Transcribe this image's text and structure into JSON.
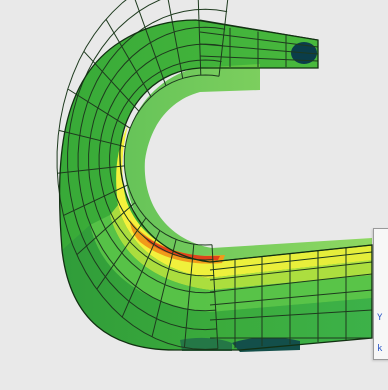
{
  "viewer": {
    "background_color": "#e9e9e9",
    "mesh_line_color": "#1e3a1e",
    "model": "curved-hook-finite-element-mesh",
    "colors": {
      "dark_blue": "#0b3d4a",
      "green_dark": "#2e9e3b",
      "green": "#48b83c",
      "green_light": "#6fd14a",
      "lime": "#b9e23d",
      "yellow": "#e6e83a",
      "orange": "#f09a1a",
      "red": "#e0421a"
    }
  },
  "legend": {
    "visible_fragments": [
      "Y",
      "k"
    ],
    "text_color": "#2a56c6"
  }
}
